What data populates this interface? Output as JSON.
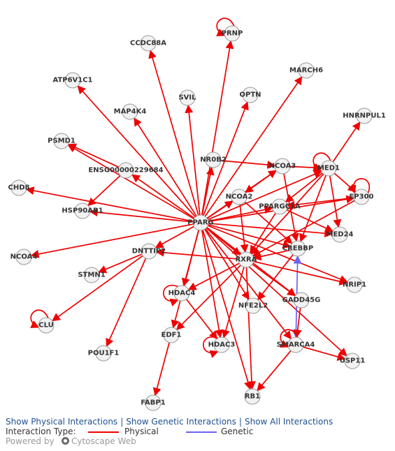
{
  "colors": {
    "physical": "#ee0000",
    "genetic": "#6c63f0"
  },
  "nodes": [
    {
      "id": "PRNP",
      "label": "PRNP"
    },
    {
      "id": "CCDC88A",
      "label": "CCDC88A"
    },
    {
      "id": "ATP6V1C1",
      "label": "ATP6V1C1"
    },
    {
      "id": "MARCH6",
      "label": "MARCH6"
    },
    {
      "id": "MAP4K4",
      "label": "MAP4K4"
    },
    {
      "id": "SVIL",
      "label": "SVIL"
    },
    {
      "id": "OPTN",
      "label": "OPTN"
    },
    {
      "id": "HNRNPUL1",
      "label": "HNRNPUL1"
    },
    {
      "id": "PSMD1",
      "label": "PSMD1"
    },
    {
      "id": "NR0B2",
      "label": "NR0B2"
    },
    {
      "id": "NCOA3",
      "label": "NCOA3"
    },
    {
      "id": "MED1",
      "label": "MED1"
    },
    {
      "id": "ENSG00000229684",
      "label": "ENSG00000229684"
    },
    {
      "id": "CHD8",
      "label": "CHD8"
    },
    {
      "id": "NCOA2",
      "label": "NCOA2"
    },
    {
      "id": "EP300",
      "label": "EP300"
    },
    {
      "id": "HSP90AB1",
      "label": "HSP90AB1"
    },
    {
      "id": "PPARGC1A",
      "label": "PPARGC1A"
    },
    {
      "id": "PPARG",
      "label": "PPARG"
    },
    {
      "id": "MED24",
      "label": "MED24"
    },
    {
      "id": "NCOA4",
      "label": "NCOA4"
    },
    {
      "id": "DNTTIP2",
      "label": "DNTTIP2"
    },
    {
      "id": "CREBBP",
      "label": "CREBBP"
    },
    {
      "id": "STMN1",
      "label": "STMN1"
    },
    {
      "id": "RXRA",
      "label": "RXRA"
    },
    {
      "id": "NRIP1",
      "label": "NRIP1"
    },
    {
      "id": "HDAC4",
      "label": "HDAC4"
    },
    {
      "id": "NFE2L2",
      "label": "NFE2L2"
    },
    {
      "id": "GADD45G",
      "label": "GADD45G"
    },
    {
      "id": "CLU",
      "label": "CLU"
    },
    {
      "id": "EDF1",
      "label": "EDF1"
    },
    {
      "id": "HDAC3",
      "label": "HDAC3"
    },
    {
      "id": "SMARCA4",
      "label": "SMARCA4"
    },
    {
      "id": "POU1F1",
      "label": "POU1F1"
    },
    {
      "id": "USP11",
      "label": "USP11"
    },
    {
      "id": "RB1",
      "label": "RB1"
    },
    {
      "id": "FABP1",
      "label": "FABP1"
    }
  ],
  "edges": [
    {
      "source": "PPARG",
      "target": "PRNP",
      "type": "physical"
    },
    {
      "source": "PPARG",
      "target": "CCDC88A",
      "type": "physical"
    },
    {
      "source": "PPARG",
      "target": "ATP6V1C1",
      "type": "physical"
    },
    {
      "source": "PPARG",
      "target": "MARCH6",
      "type": "physical"
    },
    {
      "source": "PPARG",
      "target": "MAP4K4",
      "type": "physical"
    },
    {
      "source": "PPARG",
      "target": "SVIL",
      "type": "physical"
    },
    {
      "source": "PPARG",
      "target": "OPTN",
      "type": "physical"
    },
    {
      "source": "PPARG",
      "target": "PSMD1",
      "type": "physical"
    },
    {
      "source": "PPARG",
      "target": "NR0B2",
      "type": "physical"
    },
    {
      "source": "PPARG",
      "target": "NCOA3",
      "type": "physical"
    },
    {
      "source": "PPARG",
      "target": "MED1",
      "type": "physical"
    },
    {
      "source": "PPARG",
      "target": "ENSG00000229684",
      "type": "physical"
    },
    {
      "source": "PPARG",
      "target": "CHD8",
      "type": "physical"
    },
    {
      "source": "PPARG",
      "target": "NCOA2",
      "type": "physical"
    },
    {
      "source": "PPARG",
      "target": "EP300",
      "type": "physical"
    },
    {
      "source": "PPARG",
      "target": "HSP90AB1",
      "type": "physical"
    },
    {
      "source": "PPARG",
      "target": "PPARGC1A",
      "type": "physical"
    },
    {
      "source": "PPARG",
      "target": "MED24",
      "type": "physical"
    },
    {
      "source": "PPARG",
      "target": "NCOA4",
      "type": "physical"
    },
    {
      "source": "PPARG",
      "target": "DNTTIP2",
      "type": "physical"
    },
    {
      "source": "PPARG",
      "target": "CREBBP",
      "type": "physical"
    },
    {
      "source": "PPARG",
      "target": "RXRA",
      "type": "physical"
    },
    {
      "source": "PPARG",
      "target": "NRIP1",
      "type": "physical"
    },
    {
      "source": "PPARG",
      "target": "HDAC4",
      "type": "physical"
    },
    {
      "source": "PPARG",
      "target": "NFE2L2",
      "type": "physical"
    },
    {
      "source": "PPARG",
      "target": "GADD45G",
      "type": "physical"
    },
    {
      "source": "PPARG",
      "target": "EDF1",
      "type": "physical"
    },
    {
      "source": "PPARG",
      "target": "HDAC3",
      "type": "physical"
    },
    {
      "source": "PPARG",
      "target": "SMARCA4",
      "type": "physical"
    },
    {
      "source": "PPARG",
      "target": "USP11",
      "type": "physical"
    },
    {
      "source": "PPARG",
      "target": "RB1",
      "type": "physical"
    },
    {
      "source": "NR0B2",
      "target": "NCOA3",
      "type": "physical"
    },
    {
      "source": "NCOA3",
      "target": "MED1",
      "type": "physical"
    },
    {
      "source": "NCOA3",
      "target": "NCOA2",
      "type": "physical"
    },
    {
      "source": "NCOA3",
      "target": "CREBBP",
      "type": "physical"
    },
    {
      "source": "MED1",
      "target": "HNRNPUL1",
      "type": "physical"
    },
    {
      "source": "MED1",
      "target": "EP300",
      "type": "physical"
    },
    {
      "source": "MED1",
      "target": "MED24",
      "type": "physical"
    },
    {
      "source": "MED1",
      "target": "PPARGC1A",
      "type": "physical"
    },
    {
      "source": "MED1",
      "target": "CREBBP",
      "type": "physical"
    },
    {
      "source": "MED1",
      "target": "RXRA",
      "type": "physical"
    },
    {
      "source": "EP300",
      "target": "RXRA",
      "type": "physical"
    },
    {
      "source": "EP300",
      "target": "PPARGC1A",
      "type": "physical"
    },
    {
      "source": "ENSG00000229684",
      "target": "PSMD1",
      "type": "physical"
    },
    {
      "source": "ENSG00000229684",
      "target": "HSP90AB1",
      "type": "physical"
    },
    {
      "source": "NCOA2",
      "target": "RXRA",
      "type": "physical"
    },
    {
      "source": "NCOA2",
      "target": "CREBBP",
      "type": "physical"
    },
    {
      "source": "PPARGC1A",
      "target": "RXRA",
      "type": "physical"
    },
    {
      "source": "PPARGC1A",
      "target": "MED24",
      "type": "physical"
    },
    {
      "source": "CREBBP",
      "target": "RXRA",
      "type": "physical"
    },
    {
      "source": "CREBBP",
      "target": "NFE2L2",
      "type": "physical"
    },
    {
      "source": "CREBBP",
      "target": "SMARCA4",
      "type": "genetic"
    },
    {
      "source": "RXRA",
      "target": "DNTTIP2",
      "type": "physical"
    },
    {
      "source": "RXRA",
      "target": "NRIP1",
      "type": "physical"
    },
    {
      "source": "RXRA",
      "target": "HDAC4",
      "type": "physical"
    },
    {
      "source": "RXRA",
      "target": "GADD45G",
      "type": "physical"
    },
    {
      "source": "RXRA",
      "target": "EDF1",
      "type": "physical"
    },
    {
      "source": "RXRA",
      "target": "HDAC3",
      "type": "physical"
    },
    {
      "source": "RXRA",
      "target": "RB1",
      "type": "physical"
    },
    {
      "source": "DNTTIP2",
      "target": "STMN1",
      "type": "physical"
    },
    {
      "source": "DNTTIP2",
      "target": "CLU",
      "type": "physical"
    },
    {
      "source": "DNTTIP2",
      "target": "POU1F1",
      "type": "physical"
    },
    {
      "source": "HDAC4",
      "target": "HDAC3",
      "type": "physical"
    },
    {
      "source": "EDF1",
      "target": "FABP1",
      "type": "physical"
    },
    {
      "source": "SMARCA4",
      "target": "USP11",
      "type": "physical"
    },
    {
      "source": "SMARCA4",
      "target": "RB1",
      "type": "physical"
    },
    {
      "source": "GADD45G",
      "target": "SMARCA4",
      "type": "physical"
    }
  ],
  "self_loops": [
    "PRNP",
    "MED1",
    "EP300",
    "HDAC4",
    "HDAC3",
    "SMARCA4",
    "CLU"
  ],
  "footer": {
    "link_physical": "Show Physical Interactions",
    "link_genetic": "Show Genetic Interactions",
    "link_all": "Show All Interactions",
    "separator": "|",
    "legend_label": "Interaction Type:",
    "legend_physical": "Physical",
    "legend_genetic": "Genetic",
    "powered_by": "Powered by",
    "powered_name": "Cytoscape Web"
  }
}
